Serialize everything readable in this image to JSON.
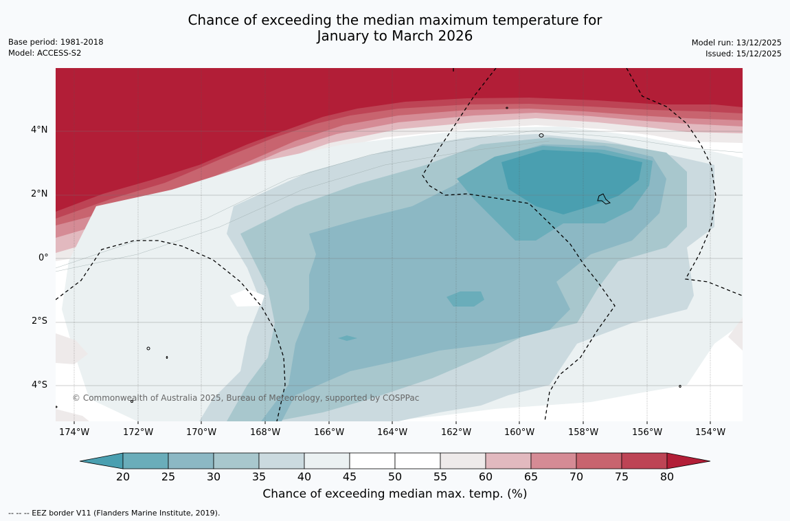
{
  "title": {
    "line1": "Chance of exceeding the median maximum temperature for",
    "line2": "January to March 2026"
  },
  "meta_left": {
    "base_period": "Base period: 1981-2018",
    "model": "Model: ACCESS-S2"
  },
  "meta_right": {
    "model_run": "Model run: 13/12/2025",
    "issued": "Issued: 15/12/2025"
  },
  "map": {
    "lon_ticks": [
      "174°W",
      "172°W",
      "170°W",
      "168°W",
      "166°W",
      "164°W",
      "162°W",
      "160°W",
      "158°W",
      "156°W",
      "154°W"
    ],
    "lat_ticks": [
      "4°N",
      "2°N",
      "0°",
      "2°S",
      "4°S"
    ],
    "copyright": "© Commonwealth of Australia 2025, Bureau of Meteorology, supported by COSPPac"
  },
  "colorbar": {
    "title": "Chance of exceeding median max. temp. (%)",
    "labels": [
      "20",
      "25",
      "30",
      "35",
      "40",
      "45",
      "50",
      "55",
      "60",
      "65",
      "70",
      "75",
      "80"
    ],
    "colors": {
      "lt20": "#4a9fb0",
      "c20_25": "#6aadba",
      "c25_30": "#8cb8c4",
      "c30_35": "#a8c7cd",
      "c35_40": "#cbdadf",
      "c40_45": "#ebf1f2",
      "c45_50": "#ffffff",
      "c50_55": "#ffffff",
      "c55_60": "#eeeaea",
      "c60_65": "#e2b9bf",
      "c65_70": "#d58b95",
      "c70_75": "#c8646f",
      "c75_80": "#bd4455",
      "gt80": "#b21e37"
    }
  },
  "legend_note": "--  --  -- EEZ border V11 (Flanders Marine Institute, 2019)."
}
